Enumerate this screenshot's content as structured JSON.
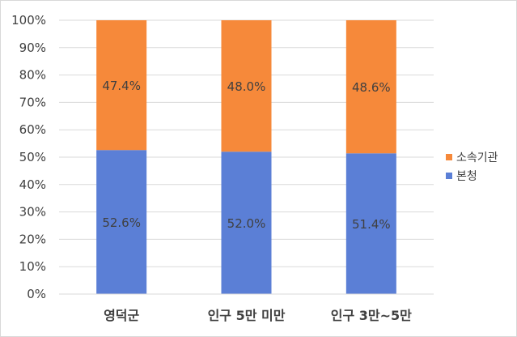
{
  "chart_data": {
    "type": "bar",
    "stacked": true,
    "percent": true,
    "title": "",
    "xlabel": "",
    "ylabel": "",
    "categories": [
      "영덕군",
      "인구 5만 미만",
      "인구 3만~5만"
    ],
    "series": [
      {
        "name": "본청",
        "values": [
          52.6,
          52.0,
          51.4
        ],
        "color": "#5b7fd6",
        "labels": [
          "52.6%",
          "52.0%",
          "51.4%"
        ]
      },
      {
        "name": "소속기관",
        "values": [
          47.4,
          48.0,
          48.6
        ],
        "color": "#f6893a",
        "labels": [
          "47.4%",
          "48.0%",
          "48.6%"
        ]
      }
    ],
    "ylim": [
      0,
      100
    ],
    "yticks": [
      "0%",
      "10%",
      "20%",
      "30%",
      "40%",
      "50%",
      "60%",
      "70%",
      "80%",
      "90%",
      "100%"
    ],
    "grid": true,
    "legend_position": "right",
    "legend_order": [
      "소속기관",
      "본청"
    ]
  }
}
